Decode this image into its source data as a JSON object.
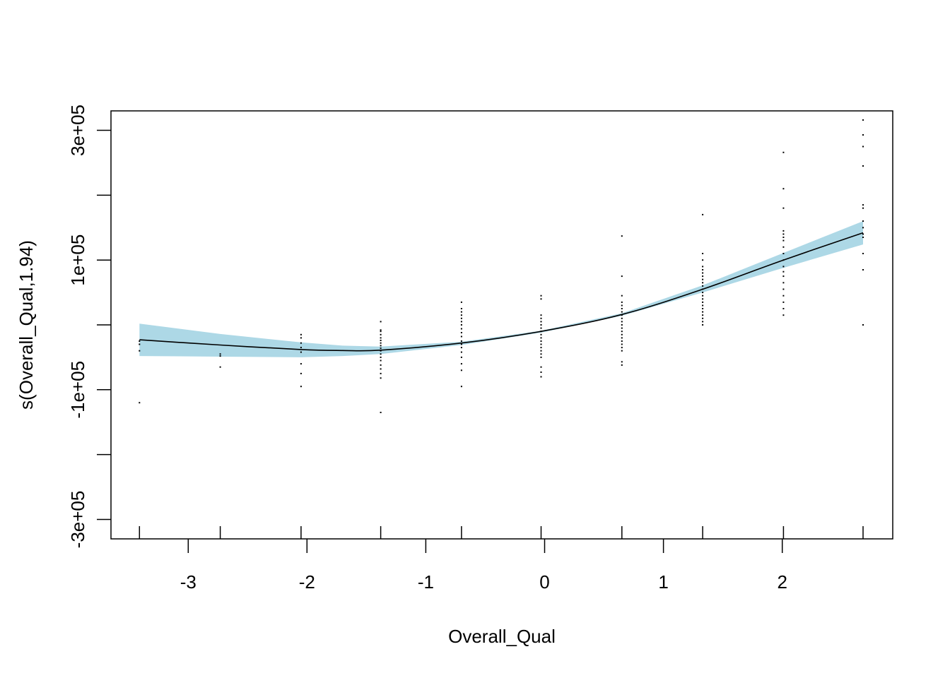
{
  "chart_data": {
    "type": "line",
    "xlabel": "Overall_Qual",
    "ylabel": "s(Overall_Qual,1.94)",
    "xlim": [
      -3.65,
      2.93
    ],
    "ylim": [
      -330000,
      330000
    ],
    "x_ticks": [
      {
        "value": -3,
        "label": "-3"
      },
      {
        "value": -2,
        "label": "-2"
      },
      {
        "value": -1,
        "label": "-1"
      },
      {
        "value": 0,
        "label": "0"
      },
      {
        "value": 1,
        "label": "1"
      },
      {
        "value": 2,
        "label": "2"
      }
    ],
    "y_ticks": [
      {
        "value": -300000,
        "label": "-3e+05"
      },
      {
        "value": -200000,
        "label": ""
      },
      {
        "value": -100000,
        "label": "-1e+05"
      },
      {
        "value": 0,
        "label": ""
      },
      {
        "value": 100000,
        "label": "1e+05"
      },
      {
        "value": 200000,
        "label": ""
      },
      {
        "value": 300000,
        "label": "3e+05"
      }
    ],
    "rug_x": [
      -3.41,
      -2.73,
      -2.05,
      -1.38,
      -0.7,
      -0.03,
      0.65,
      1.33,
      2.01,
      2.68
    ],
    "colors": {
      "band": "#add8e6",
      "curve": "#000000",
      "points": "#000000"
    },
    "series": [
      {
        "kind": "smooth",
        "x": [
          -3.41,
          -2.73,
          -2.05,
          -1.7,
          -1.38,
          -0.7,
          -0.03,
          0.65,
          1.33,
          2.01,
          2.68
        ],
        "y": [
          -23000,
          -31000,
          -38000,
          -39500,
          -39000,
          -28000,
          -10000,
          16000,
          55000,
          100000,
          142000
        ],
        "upper": [
          2000,
          -14000,
          -27000,
          -32000,
          -33500,
          -26000,
          -9000,
          18000,
          61000,
          111000,
          160000
        ],
        "lower": [
          -48000,
          -49000,
          -50000,
          -48000,
          -45000,
          -31000,
          -12000,
          14000,
          50000,
          88000,
          124000
        ]
      },
      {
        "kind": "partial_residuals",
        "x": [
          -3.41,
          -3.41,
          -3.41,
          -3.41,
          -2.73,
          -2.73,
          -2.73,
          -2.05,
          -2.05,
          -2.05,
          -2.05,
          -2.05,
          -2.05,
          -2.05,
          -2.05,
          -1.38,
          -1.38,
          -1.38,
          -1.38,
          -1.38,
          -1.38,
          -1.38,
          -1.38,
          -1.38,
          -1.38,
          -1.38,
          -1.38,
          -1.38,
          -1.38,
          -1.38,
          -1.38,
          -1.38,
          -1.38,
          -0.7,
          -0.7,
          -0.7,
          -0.7,
          -0.7,
          -0.7,
          -0.7,
          -0.7,
          -0.7,
          -0.7,
          -0.7,
          -0.7,
          -0.7,
          -0.7,
          -0.7,
          -0.7,
          -0.7,
          -0.7,
          -0.03,
          -0.03,
          -0.03,
          -0.03,
          -0.03,
          -0.03,
          -0.03,
          -0.03,
          -0.03,
          -0.03,
          -0.03,
          -0.03,
          -0.03,
          -0.03,
          -0.03,
          -0.03,
          -0.03,
          -0.03,
          -0.03,
          0.65,
          0.65,
          0.65,
          0.65,
          0.65,
          0.65,
          0.65,
          0.65,
          0.65,
          0.65,
          0.65,
          0.65,
          0.65,
          0.65,
          0.65,
          0.65,
          0.65,
          0.65,
          0.65,
          0.65,
          0.65,
          1.33,
          1.33,
          1.33,
          1.33,
          1.33,
          1.33,
          1.33,
          1.33,
          1.33,
          1.33,
          1.33,
          1.33,
          1.33,
          1.33,
          1.33,
          1.33,
          1.33,
          1.33,
          1.33,
          1.33,
          1.33,
          1.33,
          2.01,
          2.01,
          2.01,
          2.01,
          2.01,
          2.01,
          2.01,
          2.01,
          2.01,
          2.01,
          2.01,
          2.01,
          2.01,
          2.01,
          2.01,
          2.01,
          2.01,
          2.01,
          2.01,
          2.68,
          2.68,
          2.68,
          2.68,
          2.68,
          2.68,
          2.68,
          2.68,
          2.68,
          2.68,
          2.68,
          2.68,
          2.68
        ],
        "y": [
          -120000,
          -40000,
          -30000,
          -25000,
          -65000,
          -48000,
          -45000,
          -95000,
          -75000,
          -60000,
          -42000,
          -35000,
          -28000,
          -20000,
          -15000,
          -135000,
          -82000,
          -75000,
          -68000,
          -62000,
          -55000,
          -50000,
          -45000,
          -40000,
          -36000,
          -32000,
          -28000,
          -24000,
          -20000,
          -15000,
          -10000,
          -8000,
          5000,
          -95000,
          -70000,
          -60000,
          -50000,
          -42000,
          -35000,
          -30000,
          -25000,
          -18000,
          -12000,
          -6000,
          0,
          5000,
          10000,
          15000,
          20000,
          25000,
          35000,
          -80000,
          -73000,
          -65000,
          -50000,
          -45000,
          -40000,
          -35000,
          -30000,
          -25000,
          -20000,
          -15000,
          -10000,
          -5000,
          0,
          5000,
          10000,
          15000,
          40000,
          45000,
          -62000,
          -57000,
          -40000,
          -35000,
          -30000,
          -25000,
          -20000,
          -15000,
          -10000,
          -5000,
          0,
          5000,
          10000,
          15000,
          20000,
          25000,
          30000,
          35000,
          45000,
          75000,
          137000,
          0,
          5000,
          10000,
          15000,
          20000,
          25000,
          30000,
          35000,
          40000,
          45000,
          50000,
          55000,
          60000,
          65000,
          70000,
          75000,
          80000,
          85000,
          90000,
          100000,
          110000,
          170000,
          15000,
          25000,
          35000,
          45000,
          55000,
          65000,
          75000,
          82000,
          90000,
          100000,
          110000,
          120000,
          130000,
          135000,
          140000,
          145000,
          180000,
          210000,
          266000,
          0,
          85000,
          110000,
          135000,
          160000,
          180000,
          185000,
          245000,
          275000,
          293000,
          316000,
          140000,
          150000
        ]
      }
    ]
  }
}
